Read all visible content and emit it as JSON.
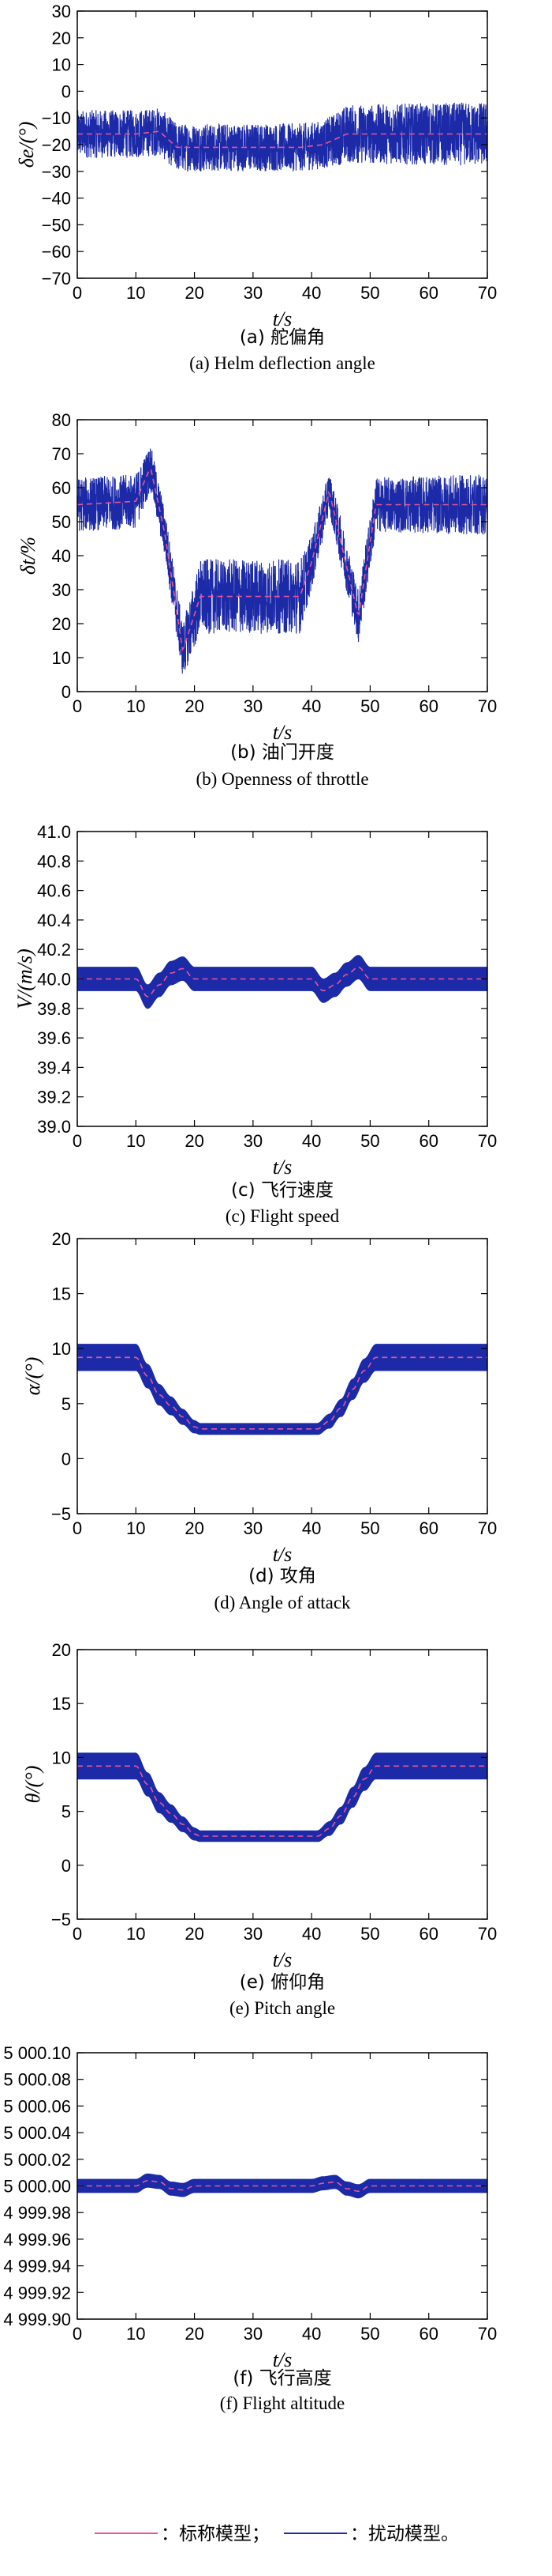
{
  "chart_data": [
    {
      "type": "line",
      "id": "a",
      "ylabel": "δe/(°)",
      "xlabel": "t/s",
      "caption_cn": "(a) 舵偏角",
      "caption_en": "(a) Helm deflection angle",
      "xlim": [
        0,
        70
      ],
      "ylim": [
        -70,
        30
      ],
      "xticks": [
        0,
        10,
        20,
        30,
        40,
        50,
        60,
        70
      ],
      "yticks": [
        -70,
        -60,
        -50,
        -40,
        -30,
        -20,
        -10,
        0,
        10,
        20,
        30
      ],
      "yticklabels": [
        "−70",
        "−60",
        "−50",
        "−40",
        "−30",
        "−20",
        "−10",
        "0",
        "10",
        "20",
        "30"
      ],
      "nominal": {
        "x": [
          0,
          10,
          14,
          17,
          38,
          42,
          46,
          70
        ],
        "y": [
          -16,
          -16,
          -15,
          -21,
          -21,
          -20,
          -16,
          -16
        ]
      },
      "perturbed_band": {
        "x": [
          0,
          10,
          14,
          17,
          38,
          42,
          46,
          70
        ],
        "half_width": [
          9,
          9,
          9,
          9,
          9,
          9,
          11,
          12
        ]
      }
    },
    {
      "type": "line",
      "id": "b",
      "ylabel": "δt/%",
      "xlabel": "t/s",
      "caption_cn": "(b) 油门开度",
      "caption_en": "(b) Openness of throttle",
      "xlim": [
        0,
        70
      ],
      "ylim": [
        0,
        80
      ],
      "xticks": [
        0,
        10,
        20,
        30,
        40,
        50,
        60,
        70
      ],
      "yticks": [
        0,
        10,
        20,
        30,
        40,
        50,
        60,
        70,
        80
      ],
      "nominal": {
        "x": [
          0,
          10,
          12.5,
          15,
          18,
          21,
          38,
          40,
          43,
          45,
          48,
          51,
          70
        ],
        "y": [
          55,
          56,
          66,
          46,
          12,
          28,
          28,
          38,
          59,
          44,
          22,
          55,
          55
        ]
      },
      "perturbed_band": {
        "x": [
          0,
          10,
          12.5,
          15,
          18,
          21,
          38,
          40,
          43,
          45,
          48,
          51,
          70
        ],
        "half_width": [
          8,
          8,
          7,
          7,
          8,
          11,
          11,
          8,
          6,
          7,
          8,
          8,
          9
        ]
      }
    },
    {
      "type": "line",
      "id": "c",
      "ylabel": "V/(m/s)",
      "xlabel": "t/s",
      "caption_cn": "(c) 飞行速度",
      "caption_en": "(c) Flight speed",
      "xlim": [
        0,
        70
      ],
      "ylim": [
        39.0,
        41.0
      ],
      "xticks": [
        0,
        10,
        20,
        30,
        40,
        50,
        60,
        70
      ],
      "yticks": [
        39.0,
        39.2,
        39.4,
        39.6,
        39.8,
        40.0,
        40.2,
        40.4,
        40.6,
        40.8,
        41.0
      ],
      "yticklabels": [
        "39.0",
        "39.2",
        "39.4",
        "39.6",
        "39.8",
        "40.0",
        "40.2",
        "40.4",
        "40.6",
        "40.8",
        "41.0"
      ],
      "nominal": {
        "x": [
          0,
          10,
          12,
          14,
          16,
          18,
          20,
          40,
          42,
          44,
          46,
          48,
          50,
          70
        ],
        "y": [
          40.0,
          40.0,
          39.88,
          39.96,
          40.04,
          40.07,
          40.0,
          40.0,
          39.92,
          39.96,
          40.03,
          40.08,
          40.0,
          40.0
        ]
      },
      "perturbed_band": {
        "x": [
          0,
          70
        ],
        "half_width": [
          0.08,
          0.08
        ]
      }
    },
    {
      "type": "line",
      "id": "d",
      "ylabel": "α/(°)",
      "xlabel": "t/s",
      "caption_cn": "(d) 攻角",
      "caption_en": "(d) Angle of attack",
      "xlim": [
        0,
        70
      ],
      "ylim": [
        -5,
        20
      ],
      "xticks": [
        0,
        10,
        20,
        30,
        40,
        50,
        60,
        70
      ],
      "yticks": [
        -5,
        0,
        5,
        10,
        15,
        20
      ],
      "yticklabels": [
        "−5",
        "0",
        "5",
        "10",
        "15",
        "20"
      ],
      "nominal": {
        "x": [
          0,
          10,
          12,
          14,
          16,
          18,
          20,
          21,
          41,
          43,
          45,
          47,
          49,
          51,
          70
        ],
        "y": [
          9.2,
          9.2,
          7.5,
          5.8,
          4.8,
          3.8,
          2.9,
          2.7,
          2.7,
          3.4,
          4.6,
          6.3,
          8.0,
          9.2,
          9.2
        ]
      },
      "perturbed_band": {
        "x": [
          0,
          10,
          21,
          41,
          51,
          70
        ],
        "half_width": [
          1.2,
          1.2,
          0.5,
          0.5,
          1.2,
          1.2
        ]
      }
    },
    {
      "type": "line",
      "id": "e",
      "ylabel": "θ/(°)",
      "xlabel": "t/s",
      "caption_cn": "(e) 俯仰角",
      "caption_en": "(e) Pitch angle",
      "xlim": [
        0,
        70
      ],
      "ylim": [
        -5,
        20
      ],
      "xticks": [
        0,
        10,
        20,
        30,
        40,
        50,
        60,
        70
      ],
      "yticks": [
        -5,
        0,
        5,
        10,
        15,
        20
      ],
      "yticklabels": [
        "−5",
        "0",
        "5",
        "10",
        "15",
        "20"
      ],
      "nominal": {
        "x": [
          0,
          10,
          12,
          14,
          16,
          18,
          20,
          21,
          41,
          43,
          45,
          47,
          49,
          51,
          70
        ],
        "y": [
          9.2,
          9.2,
          7.5,
          5.8,
          4.8,
          3.8,
          2.9,
          2.7,
          2.7,
          3.4,
          4.6,
          6.3,
          8.0,
          9.2,
          9.2
        ]
      },
      "perturbed_band": {
        "x": [
          0,
          10,
          21,
          41,
          51,
          70
        ],
        "half_width": [
          1.2,
          1.2,
          0.5,
          0.5,
          1.2,
          1.2
        ]
      }
    },
    {
      "type": "line",
      "id": "f",
      "ylabel": "",
      "xlabel": "t/s",
      "caption_cn": "(f) 飞行高度",
      "caption_en": "(f) Flight altitude",
      "xlim": [
        0,
        70
      ],
      "ylim": [
        4999.9,
        5000.1
      ],
      "xticks": [
        0,
        10,
        20,
        30,
        40,
        50,
        60,
        70
      ],
      "yticks": [
        4999.9,
        4999.92,
        4999.94,
        4999.96,
        4999.98,
        5000.0,
        5000.02,
        5000.04,
        5000.06,
        5000.08,
        5000.1
      ],
      "yticklabels": [
        "4 999.90",
        "4 999.92",
        "4 999.94",
        "4 999.96",
        "4 999.98",
        "5 000.00",
        "5 000.02",
        "5 000.04",
        "5 000.06",
        "5 000.08",
        "5 000.10"
      ],
      "nominal": {
        "x": [
          0,
          10,
          12,
          14,
          16,
          18,
          20,
          40,
          42,
          44,
          46,
          48,
          50,
          70
        ],
        "y": [
          5000.0,
          5000.0,
          5000.004,
          5000.003,
          4999.998,
          4999.997,
          5000.0,
          5000.0,
          5000.002,
          5000.003,
          4999.998,
          4999.996,
          5000.0,
          5000.0
        ]
      },
      "perturbed_band": {
        "x": [
          0,
          70
        ],
        "half_width": [
          0.005,
          0.005
        ]
      }
    }
  ],
  "legend": {
    "nominal_label": "：标称模型；",
    "perturbed_label": "：扰动模型。"
  },
  "colors": {
    "nominal": "#e8559a",
    "perturbed": "#1c2aa8"
  }
}
